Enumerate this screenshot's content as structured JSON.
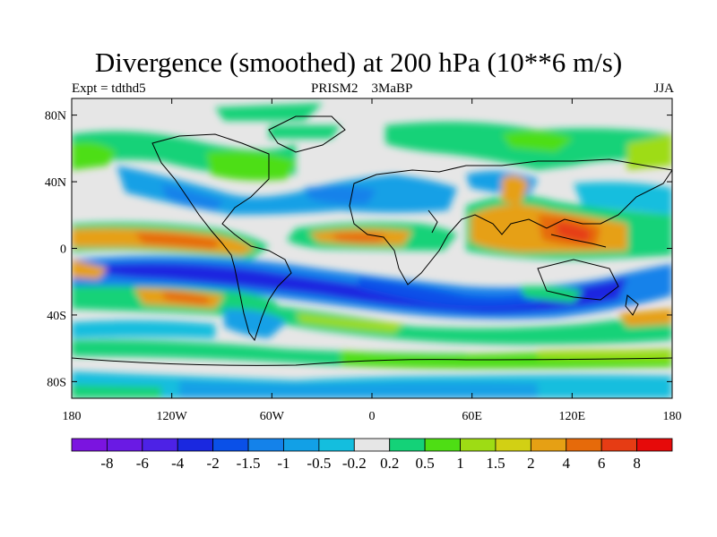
{
  "title": "Divergence (smoothed) at 200 hPa (10**6 m/s)",
  "subtitle_left": "Expt = tdthd5",
  "subtitle_center": "PRISM2    3MaBP",
  "subtitle_right": "JJA",
  "map": {
    "lon_range": [
      -180,
      180
    ],
    "lat_range": [
      -90,
      90
    ],
    "x_ticks": [
      {
        "lon": -180,
        "label": "180"
      },
      {
        "lon": -120,
        "label": "120W"
      },
      {
        "lon": -60,
        "label": "60W"
      },
      {
        "lon": 0,
        "label": "0"
      },
      {
        "lon": 60,
        "label": "60E"
      },
      {
        "lon": 120,
        "label": "120E"
      },
      {
        "lon": 180,
        "label": "180"
      }
    ],
    "y_ticks": [
      {
        "lat": 80,
        "label": "80N"
      },
      {
        "lat": 40,
        "label": "40N"
      },
      {
        "lat": 0,
        "label": "0"
      },
      {
        "lat": -40,
        "label": "40S"
      },
      {
        "lat": -80,
        "label": "80S"
      }
    ]
  },
  "colorbar": {
    "colors": [
      "#7b14e0",
      "#6a1ae4",
      "#4d22e6",
      "#1a28e0",
      "#0a50e8",
      "#1482ea",
      "#12a0e6",
      "#14bede",
      "#e6e6e6",
      "#14d278",
      "#4ede14",
      "#9edc14",
      "#d2d014",
      "#e6a014",
      "#e66a0a",
      "#e63c14",
      "#e60a0a"
    ],
    "levels": [
      {
        "value": -8,
        "label": "-8"
      },
      {
        "value": -6,
        "label": "-6"
      },
      {
        "value": -4,
        "label": "-4"
      },
      {
        "value": -2,
        "label": "-2"
      },
      {
        "value": -1.5,
        "label": "-1.5"
      },
      {
        "value": -1,
        "label": "-1"
      },
      {
        "value": -0.5,
        "label": "-0.5"
      },
      {
        "value": -0.2,
        "label": "-0.2"
      },
      {
        "value": 0.2,
        "label": "0.2"
      },
      {
        "value": 0.5,
        "label": "0.5"
      },
      {
        "value": 1,
        "label": "1"
      },
      {
        "value": 1.5,
        "label": "1.5"
      },
      {
        "value": 2,
        "label": "2"
      },
      {
        "value": 4,
        "label": "4"
      },
      {
        "value": 6,
        "label": "6"
      },
      {
        "value": 8,
        "label": "8"
      }
    ]
  }
}
